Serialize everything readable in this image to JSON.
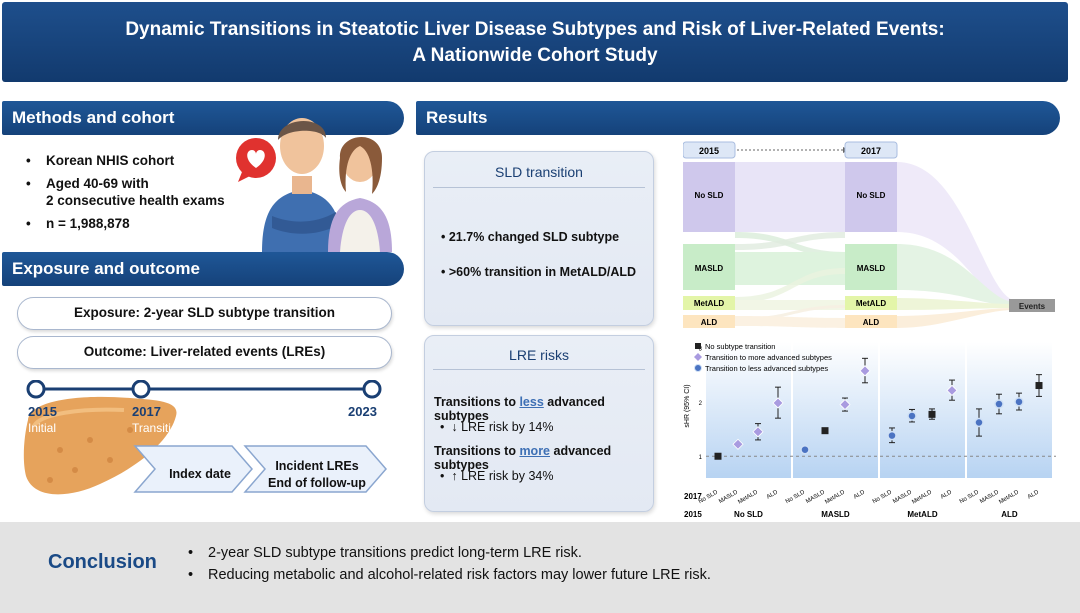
{
  "header": {
    "title_line1": "Dynamic Transitions in Steatotic Liver Disease Subtypes and Risk of Liver-Related Events:",
    "title_line2": "A Nationwide Cohort Study"
  },
  "methods": {
    "title": "Methods and cohort",
    "bullets": [
      {
        "line1": "Korean NHIS cohort",
        "line2": ""
      },
      {
        "line1": "Aged 40-69 with",
        "line2": "2 consecutive health exams"
      },
      {
        "line1": "n = 1,988,878",
        "line2": ""
      }
    ]
  },
  "exposure": {
    "title": "Exposure and outcome",
    "exposure_label": "Exposure: 2-year SLD subtype transition",
    "outcome_label": "Outcome: Liver-related events (LREs)",
    "timeline": [
      {
        "year": "2015",
        "desc": "Initial"
      },
      {
        "year": "2017",
        "desc": "Transition assessment"
      },
      {
        "year": "2023",
        "desc": ""
      }
    ],
    "index_date": "Index date",
    "incident_line1": "Incident LREs",
    "incident_line2": "End of follow-up"
  },
  "results": {
    "title": "Results",
    "sld_card": {
      "title": "SLD transition",
      "items": [
        "21.7% changed SLD subtype",
        ">60% transition in MetALD/ALD"
      ]
    },
    "lre_card": {
      "title": "LRE risks",
      "less_pre": "Transitions to ",
      "less_hl": "less",
      "less_post": " advanced subtypes",
      "less_item": "LRE risk by 14%",
      "more_pre": "Transitions to ",
      "more_hl": "more",
      "more_post": " advanced subtypes",
      "more_item": "LRE risk by 34%"
    },
    "sankey": {
      "year_left": "2015",
      "year_right": "2017",
      "nodes": [
        "No SLD",
        "MASLD",
        "MetALD",
        "ALD"
      ],
      "events_label": "Events",
      "colors": {
        "no_sld": "#cfc8ec",
        "masld": "#c8ecc8",
        "metald": "#e3f5a8",
        "ald": "#fde5bf"
      }
    }
  },
  "chart_data": {
    "type": "scatter",
    "ylabel": "sHR (95% CI)",
    "yticks": [
      "1",
      "2",
      "3"
    ],
    "ylim": [
      0.6,
      3.1
    ],
    "legend": [
      {
        "marker": "square",
        "color": "#222222",
        "label": "No subtype transition"
      },
      {
        "marker": "diamond",
        "color": "#a99be0",
        "label": "Transition to more advanced subtypes"
      },
      {
        "marker": "circle",
        "color": "#4b73c2",
        "label": "Transition to less advanced subtypes"
      }
    ],
    "row_label_2017": "2017",
    "row_label_2015": "2015",
    "groups": [
      {
        "name": "No SLD",
        "points": [
          {
            "to": "No SLD",
            "type": "none",
            "y": 1.0,
            "lo": 1.0,
            "hi": 1.0
          },
          {
            "to": "MASLD",
            "type": "more",
            "y": 1.22,
            "lo": 1.18,
            "hi": 1.26
          },
          {
            "to": "MetALD",
            "type": "more",
            "y": 1.45,
            "lo": 1.3,
            "hi": 1.6
          },
          {
            "to": "ALD",
            "type": "more",
            "y": 1.98,
            "lo": 1.7,
            "hi": 2.27
          }
        ]
      },
      {
        "name": "MASLD",
        "points": [
          {
            "to": "No SLD",
            "type": "less",
            "y": 1.12,
            "lo": 1.08,
            "hi": 1.16
          },
          {
            "to": "MASLD",
            "type": "none",
            "y": 1.47,
            "lo": 1.44,
            "hi": 1.5
          },
          {
            "to": "MetALD",
            "type": "more",
            "y": 1.95,
            "lo": 1.83,
            "hi": 2.07
          },
          {
            "to": "ALD",
            "type": "more",
            "y": 2.57,
            "lo": 2.35,
            "hi": 2.8
          }
        ]
      },
      {
        "name": "MetALD",
        "points": [
          {
            "to": "No SLD",
            "type": "less",
            "y": 1.38,
            "lo": 1.25,
            "hi": 1.52
          },
          {
            "to": "MASLD",
            "type": "less",
            "y": 1.74,
            "lo": 1.63,
            "hi": 1.86
          },
          {
            "to": "MetALD",
            "type": "none",
            "y": 1.77,
            "lo": 1.68,
            "hi": 1.87
          },
          {
            "to": "ALD",
            "type": "more",
            "y": 2.21,
            "lo": 2.03,
            "hi": 2.4
          }
        ]
      },
      {
        "name": "ALD",
        "points": [
          {
            "to": "No SLD",
            "type": "less",
            "y": 1.62,
            "lo": 1.37,
            "hi": 1.87
          },
          {
            "to": "MASLD",
            "type": "less",
            "y": 1.96,
            "lo": 1.78,
            "hi": 2.14
          },
          {
            "to": "MetALD",
            "type": "less",
            "y": 2.0,
            "lo": 1.85,
            "hi": 2.16
          },
          {
            "to": "ALD",
            "type": "none",
            "y": 2.3,
            "lo": 2.1,
            "hi": 2.5
          }
        ]
      }
    ]
  },
  "conclusion": {
    "title": "Conclusion",
    "items": [
      "2-year SLD subtype transitions predict long-term LRE risk.",
      "Reducing metabolic and alcohol-related risk factors may lower future LRE risk."
    ]
  }
}
